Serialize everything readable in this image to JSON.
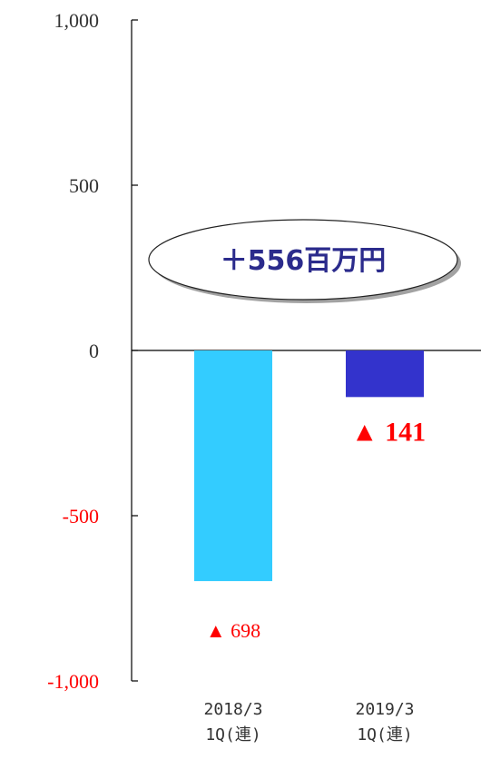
{
  "chart_data": {
    "type": "bar",
    "categories": [
      "2018/3\n1Q(連)",
      "2019/3\n1Q(連)"
    ],
    "values": [
      -698,
      -141
    ],
    "bar_colors": [
      "#33ccff",
      "#3333cc"
    ],
    "data_labels": [
      "▲ 698",
      "▲ 141"
    ],
    "ylim": [
      -1000,
      1000
    ],
    "yticks": [
      1000,
      500,
      0,
      -500,
      -1000
    ],
    "ytick_labels": [
      "1,000",
      "500",
      "0",
      "-500",
      "-1,000"
    ],
    "negative_tick_color": "#ff0000",
    "annotation": "＋556百万円",
    "title": "",
    "xlabel": "",
    "ylabel": ""
  }
}
